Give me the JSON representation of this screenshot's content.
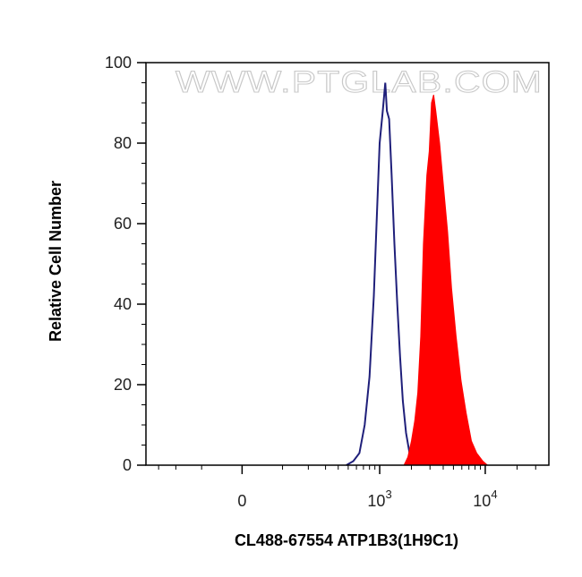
{
  "watermark": "WWW.PTGLAB.COM",
  "chart_data": {
    "type": "area",
    "xlabel": "CL488-67554 ATP1B3(1H9C1)",
    "ylabel": "Relative Cell Number",
    "x_scale": "biexponential",
    "xlim": [
      -400,
      40000
    ],
    "ylim": [
      0,
      100
    ],
    "y_ticks": [
      0,
      20,
      40,
      60,
      80,
      100
    ],
    "x_tick_labels": [
      {
        "value": 0,
        "label": "0",
        "sup": ""
      },
      {
        "value": 1000,
        "label": "10",
        "sup": "3"
      },
      {
        "value": 10000,
        "label": "10",
        "sup": "4"
      }
    ],
    "grid": false,
    "legend": "none",
    "series": [
      {
        "style": "outline",
        "color": "#1f1f7a",
        "points": [
          [
            480,
            0
          ],
          [
            560,
            1
          ],
          [
            640,
            3
          ],
          [
            720,
            10
          ],
          [
            800,
            22
          ],
          [
            880,
            42
          ],
          [
            940,
            62
          ],
          [
            1000,
            80
          ],
          [
            1070,
            88
          ],
          [
            1130,
            95
          ],
          [
            1170,
            88
          ],
          [
            1230,
            86
          ],
          [
            1300,
            72
          ],
          [
            1380,
            55
          ],
          [
            1470,
            40
          ],
          [
            1560,
            27
          ],
          [
            1660,
            16
          ],
          [
            1780,
            8
          ],
          [
            1920,
            3
          ],
          [
            2100,
            1
          ],
          [
            2300,
            0
          ]
        ]
      },
      {
        "style": "filled",
        "color": "#ff0000",
        "points": [
          [
            1700,
            0
          ],
          [
            1850,
            2
          ],
          [
            2000,
            6
          ],
          [
            2150,
            11
          ],
          [
            2300,
            18
          ],
          [
            2450,
            32
          ],
          [
            2600,
            55
          ],
          [
            2800,
            72
          ],
          [
            2950,
            78
          ],
          [
            3100,
            90
          ],
          [
            3250,
            92
          ],
          [
            3400,
            88
          ],
          [
            3700,
            80
          ],
          [
            4000,
            70
          ],
          [
            4400,
            58
          ],
          [
            4800,
            44
          ],
          [
            5300,
            32
          ],
          [
            5900,
            21
          ],
          [
            6600,
            13
          ],
          [
            7400,
            6
          ],
          [
            8300,
            3
          ],
          [
            9500,
            1
          ],
          [
            10500,
            0
          ]
        ]
      }
    ]
  }
}
